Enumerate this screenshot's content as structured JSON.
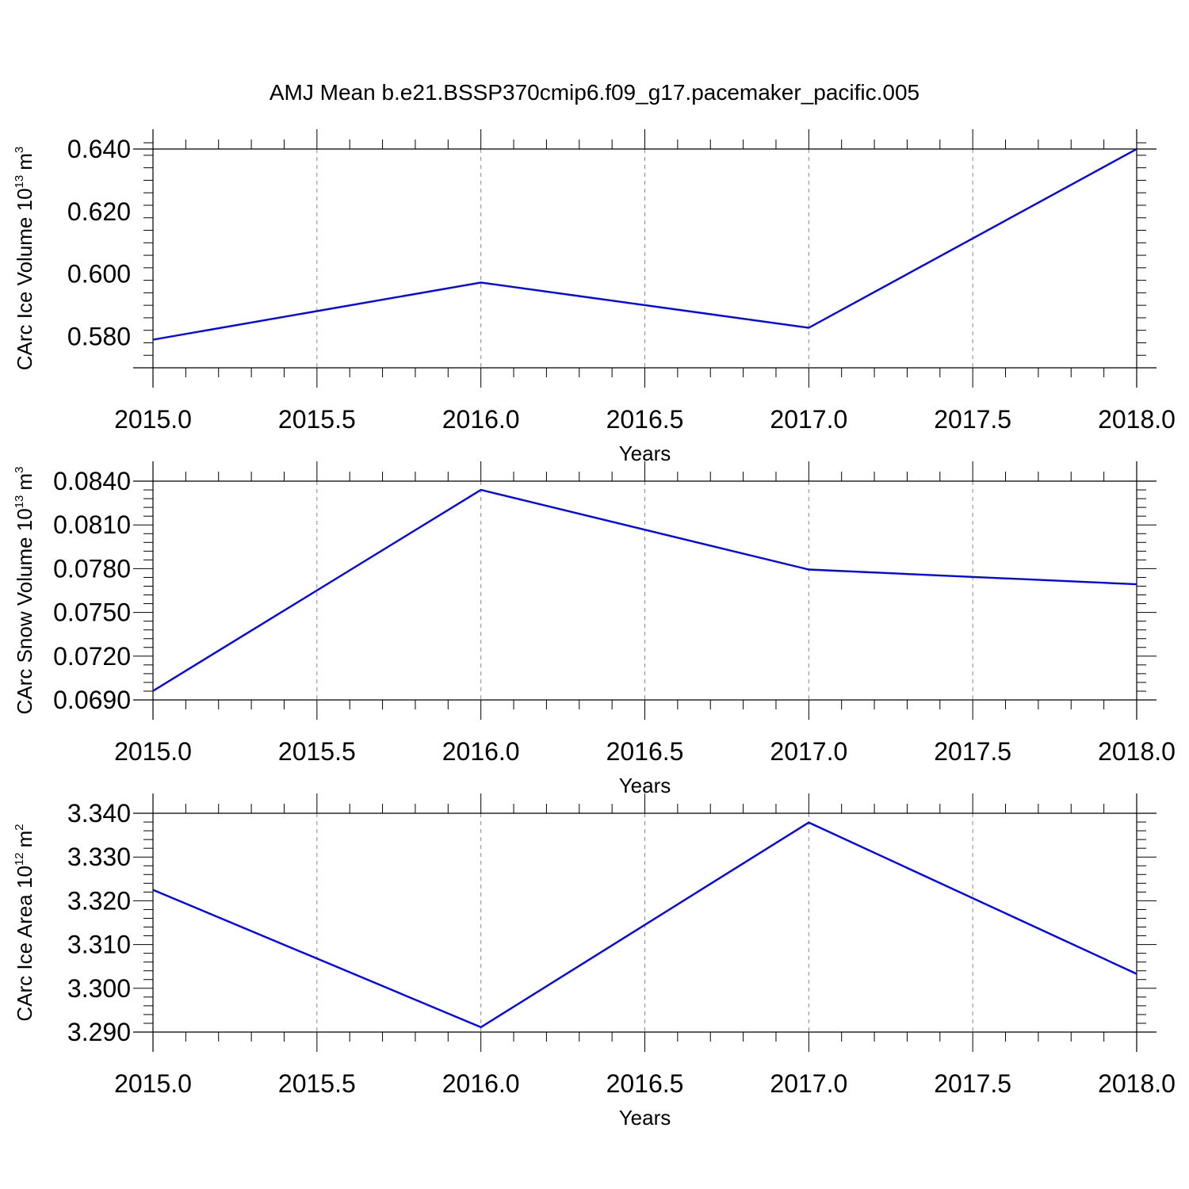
{
  "title": "AMJ Mean b.e21.BSSP370cmip6.f09_g17.pacemaker_pacific.005",
  "chart_data": [
    {
      "type": "line",
      "xlabel": "Years",
      "ylabel": "CArc Ice Volume 10",
      "ylabel_exp": "13",
      "ylabel_unit": "m",
      "ylabel_unit_exp": "3",
      "xlim": [
        2015.0,
        2018.0
      ],
      "ylim": [
        0.57,
        0.64
      ],
      "x_ticks": [
        "2015.0",
        "2015.5",
        "2016.0",
        "2016.5",
        "2017.0",
        "2017.5",
        "2018.0"
      ],
      "y_ticks": [
        "0.580",
        "0.600",
        "0.620",
        "0.640"
      ],
      "grid": "vertical dashed at major x ticks",
      "line_color": "#0000ff",
      "x": [
        2015,
        2016,
        2017,
        2018
      ],
      "values": [
        0.579,
        0.5973,
        0.5828,
        0.64
      ]
    },
    {
      "type": "line",
      "xlabel": "Years",
      "ylabel": "CArc Snow Volume 10",
      "ylabel_exp": "13",
      "ylabel_unit": "m",
      "ylabel_unit_exp": "3",
      "xlim": [
        2015.0,
        2018.0
      ],
      "ylim": [
        0.069,
        0.084
      ],
      "x_ticks": [
        "2015.0",
        "2015.5",
        "2016.0",
        "2016.5",
        "2017.0",
        "2017.5",
        "2018.0"
      ],
      "y_ticks": [
        "0.0690",
        "0.0720",
        "0.0750",
        "0.0780",
        "0.0810",
        "0.0840"
      ],
      "grid": "vertical dashed at major x ticks",
      "line_color": "#0000ff",
      "x": [
        2015,
        2016,
        2017,
        2018
      ],
      "values": [
        0.06962,
        0.0834,
        0.07794,
        0.07693
      ]
    },
    {
      "type": "line",
      "xlabel": "Years",
      "ylabel": "CArc Ice Area 10",
      "ylabel_exp": "12",
      "ylabel_unit": "m",
      "ylabel_unit_exp": "2",
      "xlim": [
        2015.0,
        2018.0
      ],
      "ylim": [
        3.29,
        3.34
      ],
      "x_ticks": [
        "2015.0",
        "2015.5",
        "2016.0",
        "2016.5",
        "2017.0",
        "2017.5",
        "2018.0"
      ],
      "y_ticks": [
        "3.290",
        "3.300",
        "3.310",
        "3.320",
        "3.330",
        "3.340"
      ],
      "grid": "vertical dashed at major x ticks",
      "line_color": "#0000ff",
      "x": [
        2015,
        2016,
        2017,
        2018
      ],
      "values": [
        3.3225,
        3.2911,
        3.3379,
        3.3033
      ]
    }
  ]
}
